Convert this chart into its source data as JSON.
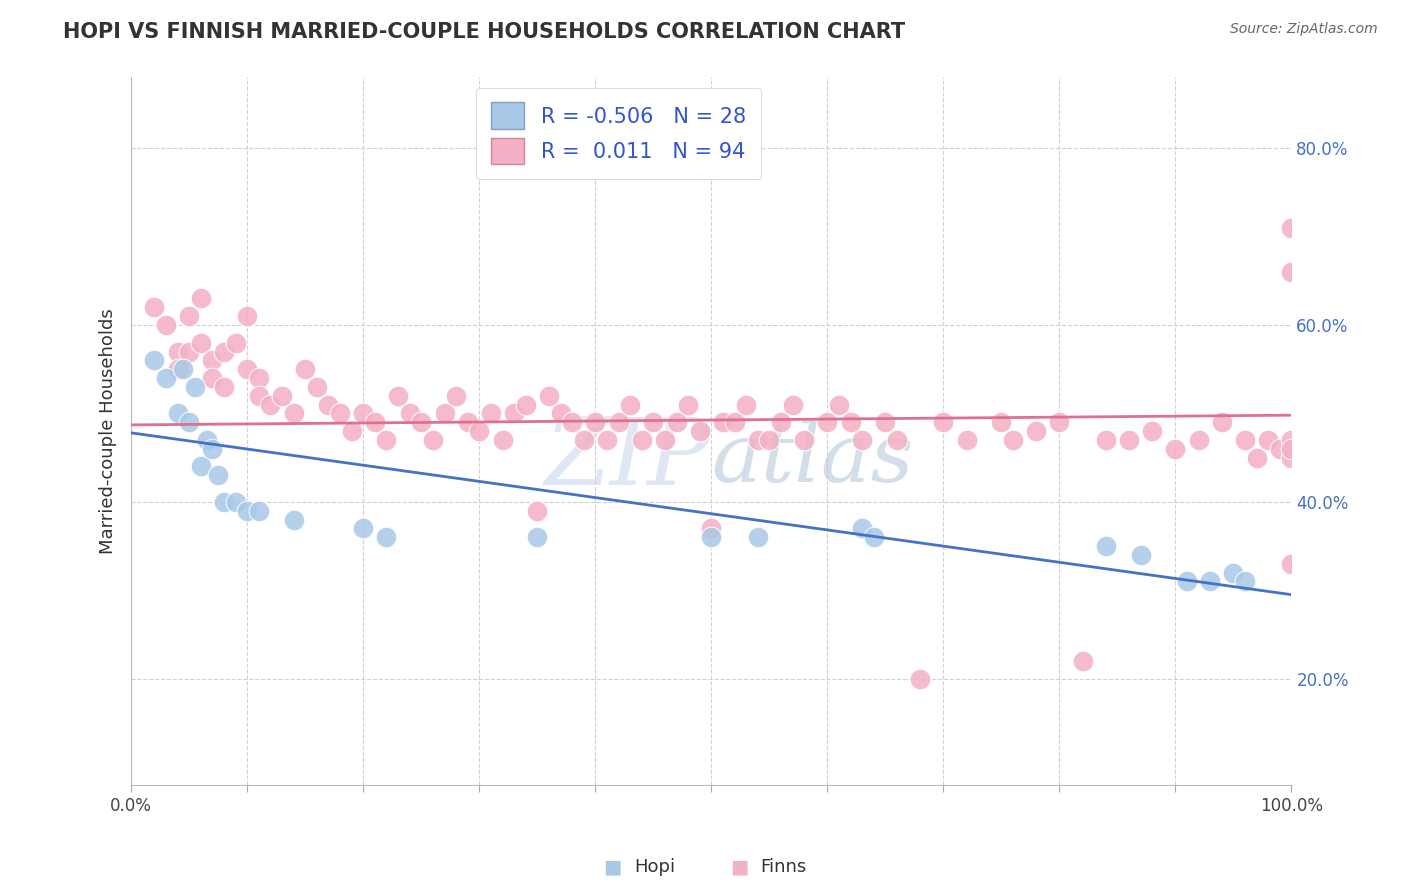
{
  "title": "HOPI VS FINNISH MARRIED-COUPLE HOUSEHOLDS CORRELATION CHART",
  "source": "Source: ZipAtlas.com",
  "ylabel": "Married-couple Households",
  "xlim": [
    0.0,
    1.0
  ],
  "ylim": [
    0.08,
    0.88
  ],
  "xticks": [
    0.0,
    0.1,
    0.2,
    0.3,
    0.4,
    0.5,
    0.6,
    0.7,
    0.8,
    0.9,
    1.0
  ],
  "yticks": [
    0.2,
    0.4,
    0.6,
    0.8
  ],
  "yticklabels": [
    "20.0%",
    "40.0%",
    "60.0%",
    "80.0%"
  ],
  "grid_color": "#cccccc",
  "background_color": "#ffffff",
  "hopi_color": "#a8c8e8",
  "finns_color": "#f4b0c4",
  "hopi_line_color": "#4472c4",
  "finns_line_color": "#e07090",
  "tick_color": "#4472c4",
  "hopi_R": -0.506,
  "hopi_N": 28,
  "finns_R": 0.011,
  "finns_N": 94,
  "hopi_line_start_y": 0.478,
  "hopi_line_end_y": 0.295,
  "finns_line_start_y": 0.487,
  "finns_line_end_y": 0.498,
  "hopi_x": [
    0.02,
    0.03,
    0.04,
    0.045,
    0.05,
    0.055,
    0.06,
    0.065,
    0.07,
    0.075,
    0.08,
    0.09,
    0.1,
    0.11,
    0.14,
    0.2,
    0.22,
    0.35,
    0.5,
    0.54,
    0.63,
    0.64,
    0.84,
    0.87,
    0.91,
    0.93,
    0.95,
    0.96
  ],
  "hopi_y": [
    0.56,
    0.54,
    0.5,
    0.55,
    0.49,
    0.53,
    0.44,
    0.47,
    0.46,
    0.43,
    0.4,
    0.4,
    0.39,
    0.39,
    0.38,
    0.37,
    0.36,
    0.36,
    0.36,
    0.36,
    0.37,
    0.36,
    0.35,
    0.34,
    0.31,
    0.31,
    0.32,
    0.31
  ],
  "finns_x": [
    0.02,
    0.03,
    0.04,
    0.04,
    0.05,
    0.05,
    0.06,
    0.06,
    0.07,
    0.07,
    0.08,
    0.08,
    0.09,
    0.1,
    0.1,
    0.11,
    0.11,
    0.12,
    0.13,
    0.14,
    0.15,
    0.16,
    0.17,
    0.18,
    0.19,
    0.2,
    0.21,
    0.22,
    0.23,
    0.24,
    0.25,
    0.26,
    0.27,
    0.28,
    0.29,
    0.3,
    0.31,
    0.32,
    0.33,
    0.34,
    0.35,
    0.36,
    0.37,
    0.38,
    0.39,
    0.4,
    0.41,
    0.42,
    0.43,
    0.44,
    0.45,
    0.46,
    0.47,
    0.48,
    0.49,
    0.5,
    0.51,
    0.52,
    0.53,
    0.54,
    0.55,
    0.56,
    0.57,
    0.58,
    0.6,
    0.61,
    0.62,
    0.63,
    0.65,
    0.66,
    0.68,
    0.7,
    0.72,
    0.75,
    0.76,
    0.78,
    0.8,
    0.82,
    0.84,
    0.86,
    0.88,
    0.9,
    0.92,
    0.94,
    0.96,
    0.97,
    0.98,
    0.99,
    1.0,
    1.0,
    1.0,
    1.0,
    1.0,
    1.0
  ],
  "finns_y": [
    0.62,
    0.6,
    0.57,
    0.55,
    0.61,
    0.57,
    0.63,
    0.58,
    0.56,
    0.54,
    0.57,
    0.53,
    0.58,
    0.61,
    0.55,
    0.54,
    0.52,
    0.51,
    0.52,
    0.5,
    0.55,
    0.53,
    0.51,
    0.5,
    0.48,
    0.5,
    0.49,
    0.47,
    0.52,
    0.5,
    0.49,
    0.47,
    0.5,
    0.52,
    0.49,
    0.48,
    0.5,
    0.47,
    0.5,
    0.51,
    0.39,
    0.52,
    0.5,
    0.49,
    0.47,
    0.49,
    0.47,
    0.49,
    0.51,
    0.47,
    0.49,
    0.47,
    0.49,
    0.51,
    0.48,
    0.37,
    0.49,
    0.49,
    0.51,
    0.47,
    0.47,
    0.49,
    0.51,
    0.47,
    0.49,
    0.51,
    0.49,
    0.47,
    0.49,
    0.47,
    0.2,
    0.49,
    0.47,
    0.49,
    0.47,
    0.48,
    0.49,
    0.22,
    0.47,
    0.47,
    0.48,
    0.46,
    0.47,
    0.49,
    0.47,
    0.45,
    0.47,
    0.46,
    0.45,
    0.47,
    0.46,
    0.33,
    0.66,
    0.71
  ]
}
